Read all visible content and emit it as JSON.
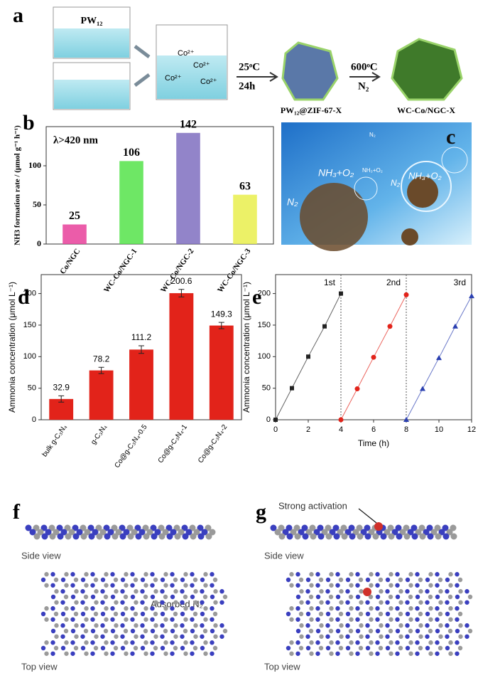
{
  "panel_a": {
    "label": "a",
    "reagent": "PW₁₂",
    "ions": [
      "Co²⁺",
      "Co²⁺",
      "Co²⁺",
      "Co²⁺"
    ],
    "step1_temp": "25ᵒC",
    "step1_time": "24h",
    "step2_temp": "600ᵒC",
    "step2_gas": "N₂",
    "product1": "PW₁₂@ZIF-67-X",
    "product2": "WC-Co/NGC-X"
  },
  "panel_c": {
    "label": "c",
    "species": [
      "NH₃+O₂",
      "N₂",
      "NH₃+O₂",
      "N₂",
      "NH₃+O₂",
      "N₂"
    ]
  },
  "panel_f": {
    "label": "f",
    "side_view": "Side view",
    "top_view": "Top view",
    "annotation": "Adsorbed N₂"
  },
  "panel_g": {
    "label": "g",
    "side_view": "Side view",
    "top_view": "Top view",
    "annotation": "Strong activation"
  },
  "chart_data": [
    {
      "type": "bar",
      "panel_label": "b",
      "annotation": "λ>420 nm",
      "ylabel": "NH3 formation rate / (μmol g⁻¹ h⁻¹)",
      "categories": [
        "Co/NGC",
        "WC-Co/NGC-1",
        "WC-Co/NGC-2",
        "WC-Co/NGC-3"
      ],
      "values": [
        25,
        106,
        142,
        63
      ],
      "colors": [
        "#e8409a",
        "#55e34a",
        "#7f6fc0",
        "#e9ee4c"
      ],
      "ylim": [
        0,
        150
      ],
      "yticks": [
        0,
        50,
        100
      ]
    },
    {
      "type": "bar",
      "panel_label": "d",
      "ylabel": "Ammonia concentration (μmol L⁻¹)",
      "categories": [
        "bulk g-C₃N₄",
        "g-C₃N₄",
        "Co@g-C₃N₄-0.5",
        "Co@g-C₃N₄-1",
        "Co@g-C₃N₄-2"
      ],
      "values": [
        32.9,
        78.2,
        111.2,
        200.6,
        149.3
      ],
      "errors": [
        5,
        5,
        6,
        6,
        5
      ],
      "color": "#e2231a",
      "ylim": [
        0,
        230
      ],
      "yticks": [
        0,
        50,
        100,
        150,
        200
      ]
    },
    {
      "type": "line",
      "panel_label": "e",
      "xlabel": "Time (h)",
      "ylabel": "Ammonia concentration (μmol L⁻¹)",
      "series": [
        {
          "name": "1st",
          "color": "#222222",
          "marker": "square",
          "x": [
            0,
            1,
            2,
            3,
            4
          ],
          "values": [
            0,
            50,
            100,
            148,
            200
          ]
        },
        {
          "name": "2nd",
          "color": "#e2231a",
          "marker": "circle",
          "x": [
            4,
            5,
            6,
            7,
            8
          ],
          "values": [
            0,
            49,
            99,
            148,
            198
          ]
        },
        {
          "name": "3rd",
          "color": "#2a3fb0",
          "marker": "triangle",
          "x": [
            8,
            9,
            10,
            11,
            12
          ],
          "values": [
            0,
            49,
            98,
            148,
            196
          ]
        }
      ],
      "dividers": [
        4,
        8
      ],
      "xlim": [
        0,
        12
      ],
      "xticks": [
        0,
        2,
        4,
        6,
        8,
        10,
        12
      ],
      "ylim": [
        0,
        230
      ],
      "yticks": [
        0,
        50,
        100,
        150,
        200
      ]
    }
  ]
}
